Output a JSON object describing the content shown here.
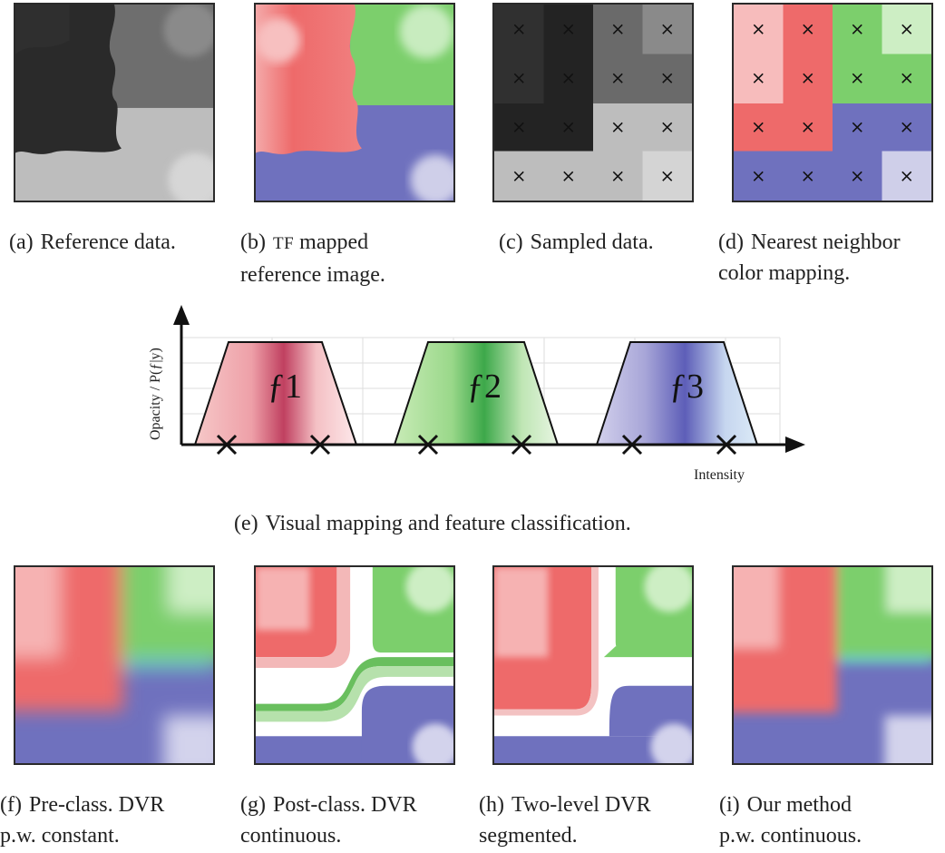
{
  "top_row": [
    {
      "label": "(a)",
      "line1": "Reference data.",
      "line2": ""
    },
    {
      "label": "(b)",
      "line1_sc": "TF",
      "line1": "mapped",
      "line2": "reference image."
    },
    {
      "label": "(c)",
      "line1": "Sampled data.",
      "line2": ""
    },
    {
      "label": "(d)",
      "line1": "Nearest neighbor",
      "line2": "color mapping."
    }
  ],
  "diagram": {
    "y_axis_label": "Opacity / P(ƒ|y)",
    "x_axis_label": "Intensity",
    "features": [
      "ƒ1",
      "ƒ2",
      "ƒ3"
    ],
    "caption_label": "(e)",
    "caption": "Visual mapping and feature classification."
  },
  "bottom_row": [
    {
      "label": "(f)",
      "line1": "Pre-class. DVR",
      "line2": "p.w. constant."
    },
    {
      "label": "(g)",
      "line1": "Post-class. DVR",
      "line2": "continuous."
    },
    {
      "label": "(h)",
      "line1": "Two-level DVR",
      "line2": "segmented."
    },
    {
      "label": "(i)",
      "line1": "Our method",
      "line2": "p.w. continuous."
    }
  ],
  "colors": {
    "red": "#ee6a6a",
    "light_red": "#f7bcbc",
    "green": "#7ccf6c",
    "light_green": "#cdeec4",
    "blue": "#6f71be",
    "light_blue": "#cfcfe9",
    "dark": "#2a2a2a",
    "mid_gray": "#6e6e6e",
    "light_gray": "#bdbdbd"
  }
}
